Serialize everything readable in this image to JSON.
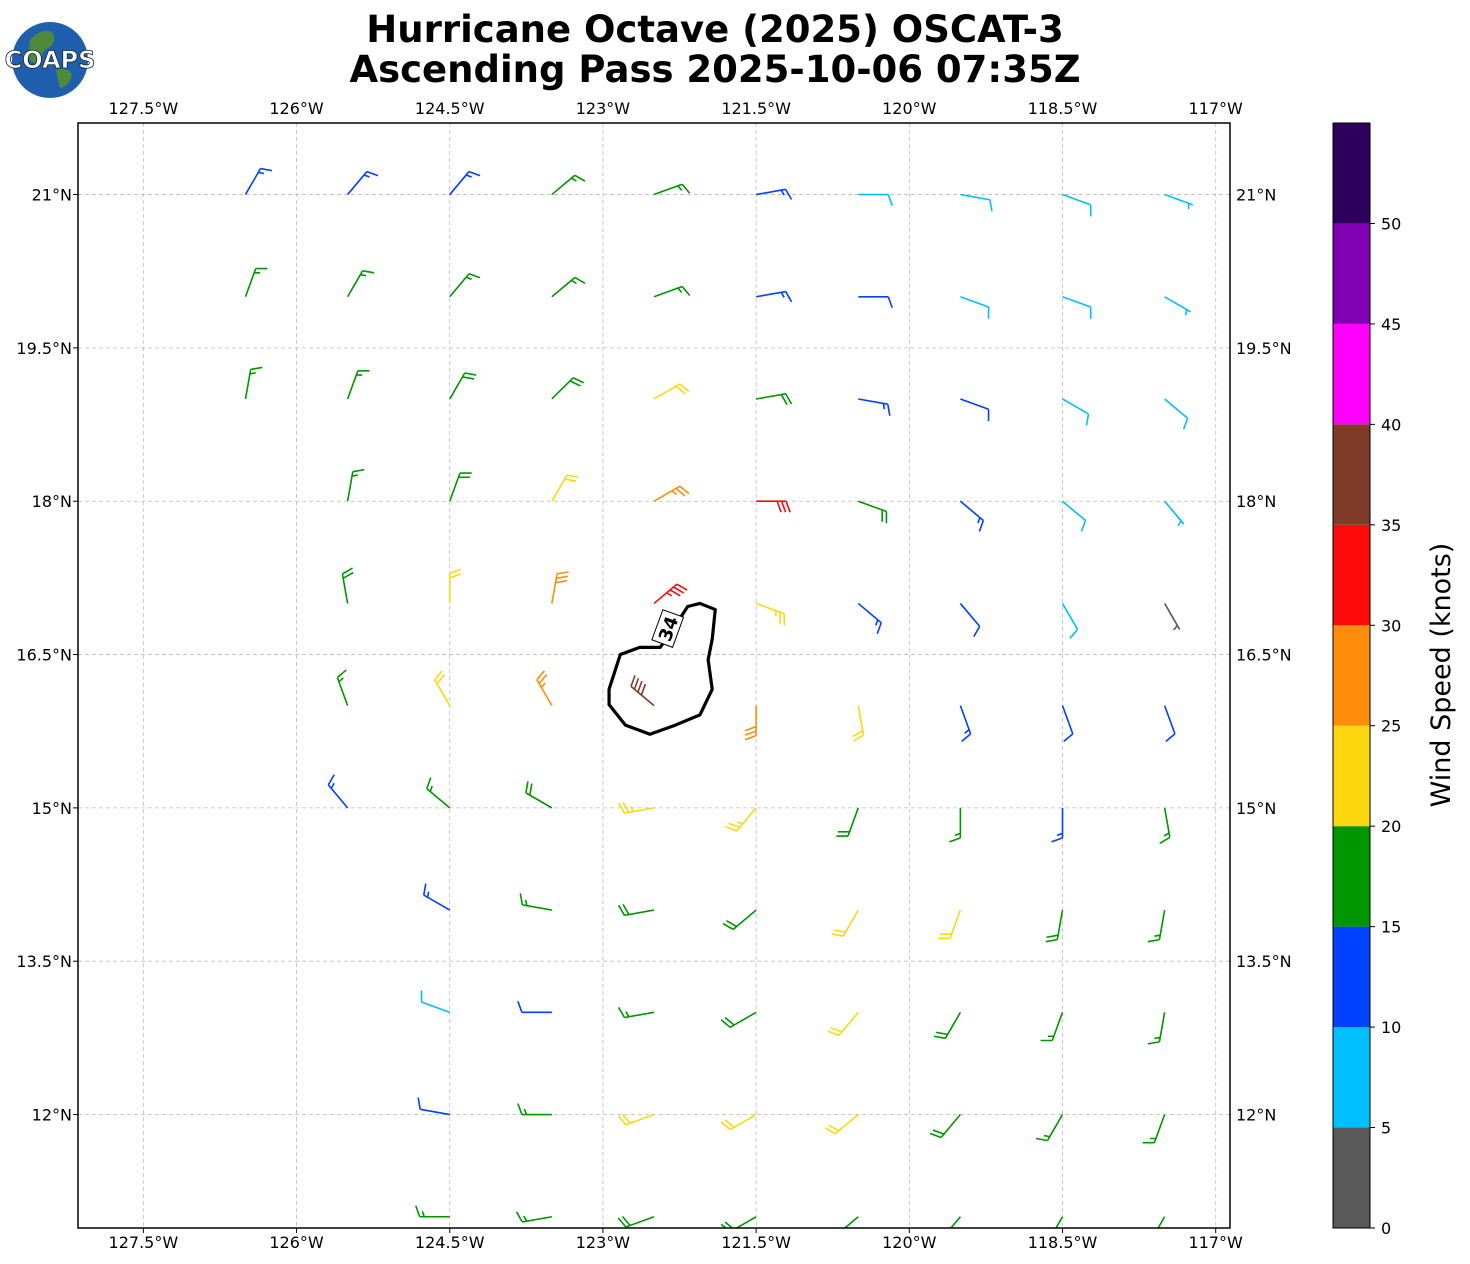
{
  "header": {
    "title": [
      "Hurricane Octave (2025) OSCAT-3",
      "Ascending Pass 2025-10-06 07:35Z"
    ]
  },
  "logo": "COAPS",
  "map": {
    "xlim": [
      -128.14,
      -116.86
    ],
    "ylim": [
      10.89,
      21.7
    ],
    "xticks": [
      {
        "value": -127.5,
        "label": "127.5°W"
      },
      {
        "value": -126,
        "label": "126°W"
      },
      {
        "value": -124.5,
        "label": "124.5°W"
      },
      {
        "value": -123,
        "label": "123°W"
      },
      {
        "value": -121.5,
        "label": "121.5°W"
      },
      {
        "value": -120,
        "label": "120°W"
      },
      {
        "value": -118.5,
        "label": "118.5°W"
      },
      {
        "value": -117,
        "label": "117°W"
      }
    ],
    "yticks": [
      {
        "value": 12,
        "label": "12°N"
      },
      {
        "value": 13.5,
        "label": "13.5°N"
      },
      {
        "value": 15,
        "label": "15°N"
      },
      {
        "value": 16.5,
        "label": "16.5°N"
      },
      {
        "value": 18,
        "label": "18°N"
      },
      {
        "value": 19.5,
        "label": "19.5°N"
      },
      {
        "value": 21,
        "label": "21°N"
      }
    ],
    "grid": true,
    "barbs": {
      "lon": [
        -127.5,
        -126.5,
        -125.5,
        -124.5,
        -123.5,
        -122.5,
        -121.5,
        -120.5,
        -119.5,
        -118.5,
        -117.5
      ],
      "lat": [
        11,
        12,
        13,
        14,
        15,
        16,
        17,
        18,
        19,
        20,
        21
      ],
      "speed": [
        [
          null,
          null,
          null,
          15,
          17,
          18,
          18,
          17,
          17,
          16,
          16
        ],
        [
          null,
          null,
          null,
          12,
          17,
          20,
          22,
          20,
          18,
          17,
          17
        ],
        [
          null,
          null,
          null,
          9,
          12,
          16,
          18,
          21,
          19,
          17,
          17
        ],
        [
          null,
          null,
          null,
          13,
          16,
          18,
          19,
          22,
          21,
          18,
          17
        ],
        [
          null,
          null,
          13,
          16,
          18,
          23,
          23,
          19,
          17,
          14,
          16
        ],
        [
          null,
          null,
          16,
          21,
          27,
          38,
          28,
          21,
          14,
          12,
          11
        ],
        [
          null,
          null,
          18,
          22,
          28,
          33,
          24,
          14,
          12,
          8,
          4
        ],
        [
          null,
          null,
          17,
          19,
          22,
          27,
          32,
          18,
          13,
          9,
          7
        ],
        [
          null,
          16,
          17,
          18,
          19,
          21,
          18,
          14,
          11,
          9,
          8
        ],
        [
          null,
          16,
          16,
          17,
          17,
          16,
          14,
          12,
          9,
          8,
          7
        ],
        [
          null,
          13,
          14,
          14,
          16,
          15,
          13,
          9,
          8,
          8,
          7
        ]
      ],
      "direction": [
        [
          null,
          null,
          null,
          270,
          260,
          250,
          240,
          230,
          220,
          210,
          210
        ],
        [
          null,
          null,
          null,
          280,
          270,
          250,
          240,
          230,
          220,
          210,
          200
        ],
        [
          null,
          null,
          null,
          290,
          270,
          260,
          240,
          220,
          210,
          200,
          190
        ],
        [
          null,
          null,
          null,
          300,
          280,
          260,
          230,
          210,
          200,
          190,
          190
        ],
        [
          null,
          null,
          320,
          310,
          300,
          260,
          220,
          200,
          180,
          180,
          170
        ],
        [
          null,
          null,
          340,
          330,
          330,
          310,
          180,
          170,
          160,
          160,
          160
        ],
        [
          null,
          null,
          350,
          0,
          10,
          50,
          110,
          130,
          140,
          150,
          150
        ],
        [
          null,
          null,
          10,
          20,
          30,
          60,
          90,
          110,
          130,
          130,
          140
        ],
        [
          null,
          10,
          20,
          30,
          45,
          60,
          80,
          100,
          110,
          120,
          130
        ],
        [
          null,
          20,
          30,
          40,
          50,
          70,
          80,
          90,
          110,
          110,
          120
        ],
        [
          null,
          30,
          40,
          40,
          50,
          70,
          80,
          90,
          100,
          110,
          110
        ]
      ]
    },
    "contour": {
      "level": 34,
      "lon": [
        -122.94,
        -122.83,
        -122.64,
        -122.44,
        -122.36,
        -122.17,
        -122.05,
        -121.9,
        -121.93,
        -121.97,
        -121.93,
        -122.05,
        -122.29,
        -122.54,
        -122.78,
        -122.94
      ],
      "lat": [
        16.16,
        16.5,
        16.57,
        16.57,
        16.68,
        16.97,
        17.0,
        16.94,
        16.65,
        16.45,
        16.16,
        15.91,
        15.81,
        15.72,
        15.81,
        16.01
      ]
    }
  },
  "colorbar": {
    "label": "Wind Speed (knots)",
    "clim": [
      0,
      55
    ],
    "bounds": [
      0,
      5,
      10,
      15,
      20,
      25,
      30,
      35,
      40,
      45,
      50,
      55
    ],
    "colors": [
      "#595959",
      "#00bfff",
      "#0040ff",
      "#009600",
      "#ffd710",
      "#ff8c0a",
      "#ff0a0a",
      "#803c28",
      "#ff00ff",
      "#8000b4",
      "#2e005e"
    ],
    "ticks": [
      0,
      5,
      10,
      15,
      20,
      25,
      30,
      35,
      40,
      45,
      50
    ]
  }
}
